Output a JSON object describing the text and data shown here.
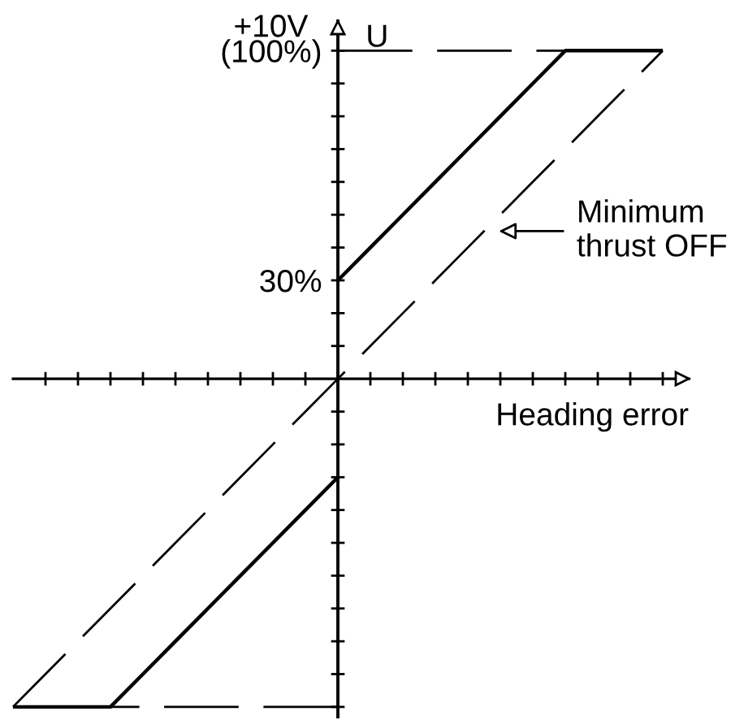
{
  "chart_data": {
    "type": "line",
    "xlabel": "Heading error",
    "ylabel": "U",
    "categories": [
      null,
      null,
      null,
      null,
      null,
      null,
      null,
      null,
      null,
      null,
      null,
      null,
      null,
      null,
      null,
      null,
      null,
      null,
      null,
      null,
      null
    ],
    "ylim": [
      -103,
      109
    ],
    "yticks": [
      {
        "value": 30,
        "label": "30%"
      },
      {
        "value": 100,
        "label": "(100%)"
      }
    ],
    "tick_labels": "y",
    "ref_lines": [
      {
        "axis": "y",
        "value": 100,
        "label": "+10V",
        "color": "#000000",
        "line_style": "dashed"
      },
      {
        "axis": "y",
        "value": -100,
        "color": "#000000",
        "line_style": "dashed"
      }
    ],
    "series": [
      {
        "color": "#000000",
        "line_style": "solid",
        "values": [
          -100,
          -100,
          -100,
          -100,
          -90,
          -80,
          -70,
          -60,
          -50,
          -40,
          -30,
          null,
          null,
          null,
          null,
          null,
          null,
          null,
          null,
          null,
          null
        ]
      },
      {
        "color": "#000000",
        "line_style": "solid",
        "values": [
          null,
          null,
          null,
          null,
          null,
          null,
          null,
          null,
          null,
          null,
          30,
          40,
          50,
          60,
          70,
          80,
          90,
          100,
          100,
          100,
          100
        ]
      },
      {
        "name": "Minimum\nthrust OFF",
        "color": "#000000",
        "line_style": "dashed",
        "values": [
          -100,
          -90,
          -80,
          -70,
          -60,
          -50,
          -40,
          -30,
          -20,
          -10,
          0,
          10,
          20,
          30,
          40,
          50,
          60,
          70,
          80,
          90,
          100
        ]
      }
    ]
  }
}
